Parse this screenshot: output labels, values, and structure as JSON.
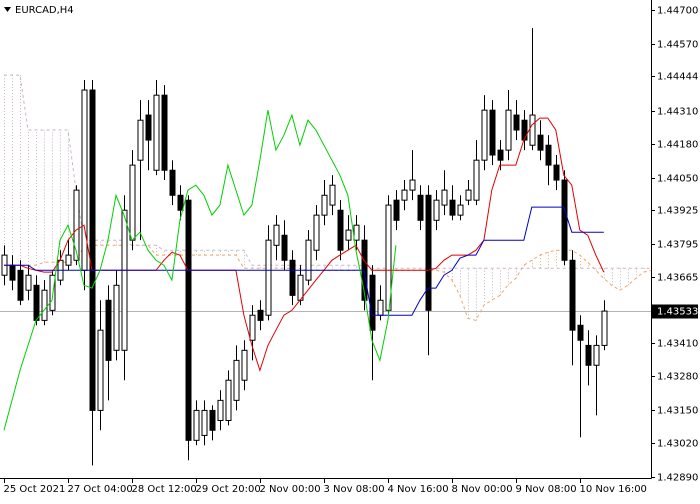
{
  "chart_data": {
    "type": "candlestick",
    "title": "EURCAD,H4",
    "current_price": 1.43533,
    "up_color": "#ffffff",
    "down_color": "#000000",
    "xlim": [
      -0.5,
      80.9
    ],
    "xticks": [
      {
        "value": 0,
        "label": "25 Oct 2021"
      },
      {
        "value": 8,
        "label": "27 Oct 04:00"
      },
      {
        "value": 16,
        "label": "28 Oct 12:00"
      },
      {
        "value": 24,
        "label": "29 Oct 20:00"
      },
      {
        "value": 32,
        "label": "2 Nov 00:00"
      },
      {
        "value": 40,
        "label": "3 Nov 08:00"
      },
      {
        "value": 48,
        "label": "4 Nov 16:00"
      },
      {
        "value": 56,
        "label": "8 Nov 00:00"
      },
      {
        "value": 64,
        "label": "9 Nov 08:00"
      },
      {
        "value": 72,
        "label": "10 Nov 16:00"
      }
    ],
    "ylim": [
      1.42886,
      1.44739
    ],
    "yticks": [
      {
        "value": 1.447,
        "label": "1.44700"
      },
      {
        "value": 1.4457,
        "label": "1.44570"
      },
      1.44444,
      {
        "value": 1.4431,
        "label": "1.44310"
      },
      {
        "value": 1.4418,
        "label": "1.44180"
      },
      {
        "value": 1.4405,
        "label": "1.44050"
      },
      1.43925,
      1.43795,
      1.43665,
      {
        "value": 1.4341,
        "label": "1.43410"
      },
      {
        "value": 1.4328,
        "label": "1.43280"
      },
      {
        "value": 1.4315,
        "label": "1.43150"
      },
      {
        "value": 1.4302,
        "label": "1.43020"
      },
      {
        "value": 1.4289,
        "label": "1.42890"
      }
    ],
    "open": [
      1.43672,
      1.43711,
      1.43691,
      1.43614,
      1.43633,
      1.43497,
      1.43536,
      1.43653,
      1.43711,
      1.4373,
      1.43691,
      1.4439,
      1.43148,
      1.43575,
      1.43381,
      1.43381,
      1.43808,
      1.44118,
      1.44293,
      1.44079,
      1.4437,
      1.44079,
      1.43982,
      1.43963,
      1.43032,
      1.43051,
      1.43148,
      1.43109,
      1.43109,
      1.43187,
      1.43265,
      1.4342,
      1.43536,
      1.43517,
      1.43788,
      1.43827,
      1.4373,
      1.43575,
      1.43653,
      1.43769,
      1.43905,
      1.43944,
      1.43924,
      1.43808,
      1.43808,
      1.43808,
      1.43672,
      1.43517,
      1.43536,
      1.43963,
      1.43963,
      1.44002,
      1.43982,
      1.43982,
      1.43885,
      1.43944,
      1.43963,
      1.43905,
      1.43963,
      1.43963,
      1.44118,
      1.44312,
      1.44157,
      1.44157,
      1.44293,
      1.44273,
      1.44176,
      1.44215,
      1.44176,
      1.44099,
      1.44041,
      1.4373,
      1.43478,
      1.434,
      1.43323,
      1.434
    ],
    "high": [
      1.43788,
      1.4375,
      1.4373,
      1.43711,
      1.43672,
      1.43653,
      1.43691,
      1.43769,
      1.43808,
      1.44021,
      1.44429,
      1.44429,
      1.43575,
      1.43633,
      1.43691,
      1.43982,
      1.44157,
      1.44351,
      1.44351,
      1.44429,
      1.44409,
      1.44118,
      1.44021,
      1.43982,
      1.43187,
      1.43187,
      1.43168,
      1.43226,
      1.43303,
      1.434,
      1.4342,
      1.43556,
      1.43575,
      1.43866,
      1.43905,
      1.43885,
      1.43769,
      1.43711,
      1.43847,
      1.43944,
      1.44041,
      1.4406,
      1.43963,
      1.43905,
      1.43905,
      1.43866,
      1.43711,
      1.43633,
      1.43982,
      1.44002,
      1.44041,
      1.44157,
      1.44021,
      1.44021,
      1.44002,
      1.44079,
      1.44021,
      1.43982,
      1.44041,
      1.44196,
      1.4437,
      1.44351,
      1.44196,
      1.4439,
      1.44351,
      1.44312,
      1.4463,
      1.44273,
      1.44215,
      1.44138,
      1.44079,
      1.43769,
      1.43517,
      1.43459,
      1.43439,
      1.43575
    ],
    "low": [
      1.43633,
      1.43614,
      1.43556,
      1.43575,
      1.43478,
      1.43478,
      1.43517,
      1.43633,
      1.43691,
      1.43711,
      1.43614,
      1.42935,
      1.43071,
      1.43187,
      1.43342,
      1.43265,
      1.43769,
      1.43808,
      1.44079,
      1.4406,
      1.44041,
      1.43944,
      1.43885,
      1.42955,
      1.43013,
      1.43013,
      1.43032,
      1.43071,
      1.4309,
      1.43148,
      1.43226,
      1.43342,
      1.43459,
      1.43497,
      1.4373,
      1.43691,
      1.43556,
      1.43556,
      1.43633,
      1.4373,
      1.43866,
      1.43905,
      1.4373,
      1.43769,
      1.43769,
      1.43536,
      1.43265,
      1.43497,
      1.43517,
      1.43847,
      1.43924,
      1.43963,
      1.43847,
      1.43362,
      1.43847,
      1.43905,
      1.43885,
      1.43885,
      1.43944,
      1.43944,
      1.44079,
      1.44099,
      1.44079,
      1.44118,
      1.44196,
      1.44157,
      1.44157,
      1.44118,
      1.44021,
      1.44002,
      1.43711,
      1.43323,
      1.43044,
      1.43245,
      1.43129,
      1.43381
    ],
    "close": [
      1.4375,
      1.43653,
      1.43575,
      1.43672,
      1.43497,
      1.43614,
      1.43672,
      1.4373,
      1.4375,
      1.44002,
      1.4439,
      1.43148,
      1.43459,
      1.43342,
      1.43633,
      1.43924,
      1.44099,
      1.44273,
      1.44196,
      1.4437,
      1.44079,
      1.43982,
      1.43924,
      1.43032,
      1.43148,
      1.43148,
      1.43071,
      1.43187,
      1.43265,
      1.43342,
      1.43381,
      1.43517,
      1.43497,
      1.43808,
      1.43866,
      1.4373,
      1.43594,
      1.43672,
      1.43808,
      1.43905,
      1.43982,
      1.44021,
      1.43769,
      1.43847,
      1.43866,
      1.43575,
      1.43459,
      1.43575,
      1.43944,
      1.43885,
      1.44002,
      1.44041,
      1.43885,
      1.43536,
      1.43963,
      1.44002,
      1.43905,
      1.43944,
      1.44002,
      1.44118,
      1.44312,
      1.44138,
      1.44118,
      1.44312,
      1.44235,
      1.44196,
      1.44293,
      1.44157,
      1.44099,
      1.44041,
      1.4373,
      1.43459,
      1.4342,
      1.43323,
      1.434,
      1.43533
    ],
    "tenkan": {
      "color": "#e00000",
      "values": [
        1.43711,
        1.43711,
        1.43711,
        1.43699,
        1.43691,
        1.43684,
        1.43684,
        1.4373,
        1.43808,
        1.43847,
        1.43866,
        1.43691,
        1.43691,
        1.43691,
        1.43691,
        1.43691,
        1.43691,
        1.43691,
        1.43691,
        1.43691,
        1.4373,
        1.43761,
        1.4375,
        1.43691,
        1.43691,
        1.43691,
        1.43691,
        1.43691,
        1.43691,
        1.43691,
        1.43517,
        1.434,
        1.43303,
        1.434,
        1.43459,
        1.43517,
        1.43536,
        1.43575,
        1.43614,
        1.43653,
        1.43691,
        1.4373,
        1.4375,
        1.43769,
        1.43788,
        1.4373,
        1.43691,
        1.43691,
        1.43691,
        1.43691,
        1.43691,
        1.43691,
        1.43691,
        1.43691,
        1.43699,
        1.4373,
        1.4375,
        1.4375,
        1.4375,
        1.43769,
        1.43808,
        1.44002,
        1.44099,
        1.44099,
        1.44099,
        1.44196,
        1.44254,
        1.44281,
        1.44281,
        1.44235,
        1.4406,
        1.44021,
        1.43847,
        1.43827,
        1.4375,
        1.43684
      ]
    },
    "kijun": {
      "color": "#0000c8",
      "values": [
        1.43711,
        1.43711,
        1.43711,
        1.43711,
        1.43691,
        1.43691,
        1.43691,
        1.43691,
        1.43691,
        1.43691,
        1.43691,
        1.43691,
        1.43691,
        1.43691,
        1.43691,
        1.43691,
        1.43691,
        1.43691,
        1.43691,
        1.43691,
        1.43691,
        1.43691,
        1.43691,
        1.43691,
        1.43691,
        1.43691,
        1.43691,
        1.43691,
        1.43691,
        1.43691,
        1.43691,
        1.43691,
        1.43691,
        1.43691,
        1.43691,
        1.43691,
        1.43691,
        1.43691,
        1.43691,
        1.43691,
        1.43691,
        1.43691,
        1.43691,
        1.43691,
        1.43691,
        1.43691,
        1.43517,
        1.43517,
        1.43517,
        1.43517,
        1.43517,
        1.43517,
        1.43575,
        1.43622,
        1.43622,
        1.43672,
        1.43691,
        1.43738,
        1.4375,
        1.4375,
        1.43808,
        1.43808,
        1.43808,
        1.43808,
        1.43808,
        1.43808,
        1.43936,
        1.43936,
        1.43936,
        1.43936,
        1.43936,
        1.43839,
        1.43839,
        1.43839,
        1.43839,
        1.43839
      ]
    },
    "chikou": {
      "color": "#00d000",
      "values": [
        1.43071,
        1.43187,
        1.43303,
        1.434,
        1.43497,
        1.43536,
        1.43575,
        1.43808,
        1.43866,
        1.43769,
        1.43633,
        1.43622,
        1.43691,
        1.43808,
        1.43982,
        1.43905,
        1.43808,
        1.43839,
        1.43769,
        1.4373,
        1.43711,
        1.43653,
        1.43885,
        1.44002,
        1.44021,
        1.43982,
        1.43905,
        1.43944,
        1.44099,
        1.44002,
        1.43905,
        1.43944,
        1.44118,
        1.44312,
        1.44157,
        1.44215,
        1.44293,
        1.44176,
        1.44273,
        1.44235,
        1.44176,
        1.44118,
        1.4406,
        1.43982,
        1.43769,
        1.43614,
        1.4342,
        1.43342,
        1.43497,
        1.43788
      ]
    },
    "span_a": {
      "color": "#f4a460",
      "dashed": true,
      "values": [
        1.43711,
        1.43711,
        1.43711,
        1.43711,
        1.43711,
        1.43722,
        1.43722,
        1.43722,
        1.43722,
        1.43722,
        1.43788,
        1.43788,
        1.43788,
        1.43788,
        1.43788,
        1.43788,
        1.43788,
        1.43788,
        1.43788,
        1.4375,
        1.4375,
        1.4375,
        1.4375,
        1.4375,
        1.4375,
        1.4375,
        1.4375,
        1.4375,
        1.4375,
        1.4375,
        1.43699,
        1.43699,
        1.43699,
        1.43699,
        1.43699,
        1.43699,
        1.43699,
        1.43699,
        1.43691,
        1.43691,
        1.43691,
        1.43691,
        1.43691,
        1.43691,
        1.43691,
        1.43691,
        1.43691,
        1.43691,
        1.43691,
        1.43691,
        1.43691,
        1.43691,
        1.43691,
        1.43691,
        1.43691,
        1.43684,
        1.43653,
        1.43594,
        1.43505,
        1.43497,
        1.43556,
        1.43575,
        1.43594,
        1.43633,
        1.4366,
        1.43711,
        1.4373,
        1.4375,
        1.43761,
        1.43769,
        1.43769,
        1.43769,
        1.4375,
        1.43722,
        1.43691,
        1.4366,
        1.43633,
        1.43614,
        1.43633,
        1.4366,
        1.43684,
        1.43691
      ]
    },
    "span_b": {
      "color": "#c8b4c8",
      "dashed": true,
      "values": [
        1.44448,
        1.44448,
        1.44448,
        1.44235,
        1.44235,
        1.44235,
        1.44235,
        1.44235,
        1.44235,
        1.44002,
        1.43808,
        1.43808,
        1.43808,
        1.43808,
        1.43808,
        1.43808,
        1.43788,
        1.43788,
        1.43788,
        1.43788,
        1.43769,
        1.43769,
        1.43769,
        1.43769,
        1.43769,
        1.43769,
        1.43769,
        1.43769,
        1.43769,
        1.43769,
        1.43769,
        1.43711,
        1.43711,
        1.43711,
        1.43711,
        1.43711,
        1.43711,
        1.43711,
        1.43711,
        1.43711,
        1.43711,
        1.43711,
        1.43711,
        1.43711,
        1.43711,
        1.43711,
        1.43699,
        1.43699,
        1.43699,
        1.43699,
        1.43699,
        1.43699,
        1.43699,
        1.43699,
        1.43699,
        1.43699,
        1.43699,
        1.43699,
        1.43699,
        1.43699,
        1.43699,
        1.43699,
        1.43699,
        1.43699,
        1.43699,
        1.43699,
        1.43699,
        1.43699,
        1.43699,
        1.43699,
        1.43699,
        1.43699,
        1.43699,
        1.43699,
        1.43699,
        1.43699,
        1.43699,
        1.43699,
        1.43699,
        1.43699,
        1.43699,
        1.43699
      ]
    },
    "cloud": true
  }
}
